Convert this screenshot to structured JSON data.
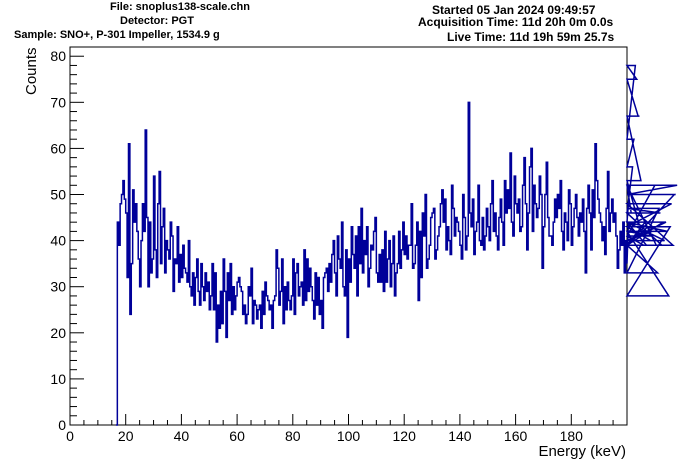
{
  "header": {
    "file": "File: snoplus138-scale.chn",
    "detector": "Detector: PGT",
    "sample": "Sample: SNO+, P-301 Impeller, 1534.9 g",
    "started": "Started 05 Jan 2024 09:49:57",
    "acquisition": "Acquisition Time: 11d 20h 0m 0.0s",
    "live": "Live Time: 11d 19h 59m 25.7s"
  },
  "chart_data": {
    "type": "line",
    "style": "histogram-step",
    "xlabel": "Energy (keV)",
    "ylabel": "Counts",
    "xlim": [
      0,
      200
    ],
    "ylim": [
      0,
      82
    ],
    "x_ticks": [
      0,
      20,
      40,
      60,
      80,
      100,
      120,
      140,
      160,
      180
    ],
    "y_ticks": [
      0,
      10,
      20,
      30,
      40,
      50,
      60,
      70,
      80
    ],
    "line_color": "#000099",
    "bin_width_keV": 0.5,
    "start_keV": 16.5,
    "values": [
      0,
      44,
      39,
      48,
      50,
      53,
      49,
      46,
      32,
      61,
      24,
      35,
      51,
      44,
      48,
      42,
      36,
      30,
      40,
      48,
      42,
      64,
      45,
      30,
      44,
      33,
      36,
      54,
      38,
      32,
      48,
      55,
      35,
      43,
      47,
      33,
      40,
      38,
      36,
      44,
      41,
      29,
      36,
      35,
      43,
      31,
      37,
      32,
      39,
      34,
      33,
      31,
      40,
      30,
      28,
      33,
      26,
      32,
      36,
      29,
      26,
      35,
      30,
      27,
      33,
      29,
      31,
      25,
      28,
      35,
      25,
      33,
      18,
      26,
      21,
      29,
      22,
      36,
      29,
      19,
      33,
      27,
      35,
      24,
      30,
      25,
      28,
      31,
      32,
      30,
      29,
      24,
      26,
      22,
      24,
      30,
      28,
      34,
      22,
      27,
      26,
      23,
      25,
      26,
      21,
      29,
      24,
      31,
      28,
      27,
      25,
      26,
      21,
      27,
      28,
      38,
      34,
      26,
      29,
      36,
      22,
      30,
      25,
      31,
      27,
      25,
      28,
      36,
      24,
      33,
      35,
      28,
      30,
      31,
      26,
      38,
      27,
      36,
      29,
      34,
      30,
      27,
      23,
      33,
      26,
      32,
      24,
      27,
      21,
      32,
      33,
      34,
      29,
      35,
      31,
      37,
      40,
      33,
      28,
      41,
      36,
      34,
      44,
      30,
      28,
      38,
      19,
      36,
      31,
      43,
      37,
      34,
      41,
      28,
      43,
      35,
      47,
      33,
      40,
      37,
      43,
      30,
      34,
      39,
      38,
      42,
      45,
      33,
      31,
      37,
      31,
      38,
      29,
      42,
      31,
      36,
      40,
      30,
      35,
      41,
      28,
      33,
      35,
      42,
      34,
      38,
      44,
      37,
      41,
      36,
      39,
      39,
      48,
      34,
      35,
      39,
      44,
      27,
      42,
      32,
      46,
      41,
      50,
      34,
      36,
      39,
      45,
      46,
      47,
      36,
      38,
      41,
      43,
      48,
      51,
      44,
      49,
      38,
      43,
      40,
      37,
      52,
      47,
      41,
      45,
      44,
      42,
      39,
      36,
      50,
      45,
      38,
      41,
      70,
      46,
      43,
      49,
      37,
      42,
      44,
      52,
      40,
      39,
      45,
      38,
      41,
      47,
      43,
      40,
      48,
      53,
      42,
      46,
      41,
      38,
      45,
      49,
      44,
      39,
      53,
      46,
      51,
      47,
      59,
      44,
      41,
      54,
      48,
      46,
      49,
      42,
      43,
      52,
      58,
      48,
      38,
      46,
      56,
      60,
      42,
      52,
      48,
      45,
      47,
      54,
      50,
      34,
      43,
      50,
      57,
      45,
      41,
      41,
      39,
      44,
      49,
      45,
      50,
      47,
      53,
      42,
      38,
      46,
      44,
      40,
      51,
      48,
      39,
      43,
      47,
      50,
      45,
      41,
      46,
      44,
      49,
      42,
      33,
      47,
      52,
      46,
      38,
      51,
      45,
      61,
      53,
      49,
      46,
      44,
      40,
      43,
      37,
      47,
      55,
      42,
      46,
      49,
      44,
      46,
      41,
      34,
      38,
      42,
      39,
      44,
      33,
      40,
      35,
      44,
      52,
      46,
      56,
      62,
      78,
      75,
      67,
      67,
      53,
      41,
      39,
      44,
      39,
      43,
      43,
      40,
      42,
      41,
      52,
      39,
      33,
      47,
      46,
      39,
      44,
      40,
      44,
      42,
      28,
      43,
      48,
      39,
      50,
      50,
      52
    ]
  }
}
